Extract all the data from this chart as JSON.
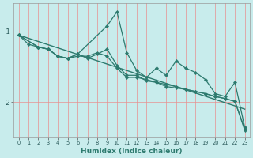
{
  "xlabel": "Humidex (Indice chaleur)",
  "bg_color": "#c8ecec",
  "grid_color": "#e89090",
  "line_color": "#2d7a6e",
  "xlim": [
    -0.5,
    23.5
  ],
  "ylim": [
    -2.5,
    -0.6
  ],
  "yticks": [
    -2,
    -1
  ],
  "xticks": [
    0,
    1,
    2,
    3,
    4,
    5,
    6,
    7,
    8,
    9,
    10,
    11,
    12,
    13,
    14,
    15,
    16,
    17,
    18,
    19,
    20,
    21,
    22,
    23
  ],
  "trend_x": [
    0,
    23
  ],
  "trend_y": [
    -1.05,
    -2.1
  ],
  "series1_x": [
    0,
    1,
    2,
    3,
    4,
    5,
    6,
    7,
    8,
    9,
    10,
    11,
    12,
    13,
    14,
    15,
    16,
    17,
    18,
    19,
    20,
    21,
    22,
    23
  ],
  "series1_y": [
    -1.05,
    -1.18,
    -1.22,
    -1.25,
    -1.35,
    -1.38,
    -1.32,
    -1.38,
    -1.32,
    -1.25,
    -1.48,
    -1.62,
    -1.62,
    -1.7,
    -1.72,
    -1.78,
    -1.8,
    -1.82,
    -1.85,
    -1.88,
    -1.92,
    -1.95,
    -1.99,
    -2.38
  ],
  "series2_x": [
    0,
    2,
    3,
    4,
    5,
    6,
    9,
    10,
    11,
    12,
    13,
    14,
    15,
    16,
    17,
    18,
    19,
    20,
    21,
    22,
    23
  ],
  "series2_y": [
    -1.05,
    -1.22,
    -1.25,
    -1.35,
    -1.38,
    -1.32,
    -0.92,
    -0.72,
    -1.3,
    -1.55,
    -1.65,
    -1.52,
    -1.62,
    -1.42,
    -1.52,
    -1.58,
    -1.68,
    -1.88,
    -1.92,
    -1.72,
    -2.36
  ],
  "series3_x": [
    0,
    2,
    3,
    4,
    5,
    6,
    7,
    8,
    9,
    10,
    11,
    12,
    13,
    14,
    15,
    16,
    17,
    18,
    19,
    20,
    21,
    22,
    23
  ],
  "series3_y": [
    -1.05,
    -1.22,
    -1.25,
    -1.35,
    -1.38,
    -1.35,
    -1.35,
    -1.3,
    -1.35,
    -1.52,
    -1.65,
    -1.65,
    -1.68,
    -1.72,
    -1.75,
    -1.78,
    -1.82,
    -1.85,
    -1.88,
    -1.92,
    -1.95,
    -1.99,
    -2.4
  ]
}
